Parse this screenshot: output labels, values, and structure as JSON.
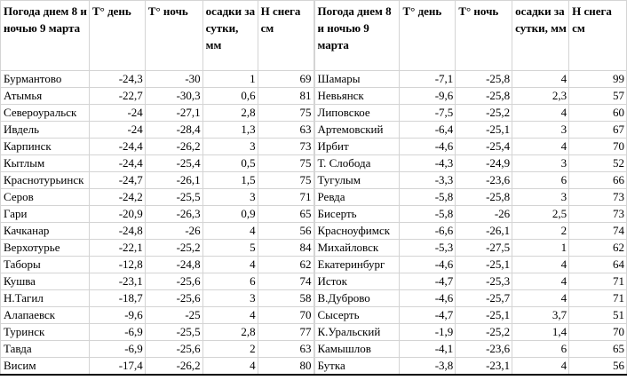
{
  "headers": [
    "Погода днем 8 и ночью 9 марта",
    "T° день",
    "T° ночь",
    "осадки за сутки, мм",
    "Н снега см"
  ],
  "left_rows": [
    [
      "Бурмантово",
      "-24,3",
      "-30",
      "1",
      "69"
    ],
    [
      "Атымья",
      "-22,7",
      "-30,3",
      "0,6",
      "81"
    ],
    [
      "Североуральск",
      "-24",
      "-27,1",
      "2,8",
      "75"
    ],
    [
      "Ивдель",
      "-24",
      "-28,4",
      "1,3",
      "63"
    ],
    [
      "Карпинск",
      "-24,4",
      "-26,2",
      "3",
      "73"
    ],
    [
      "Кытлым",
      "-24,4",
      "-25,4",
      "0,5",
      "75"
    ],
    [
      "Краснотурьинск",
      "-24,7",
      "-26,1",
      "1,5",
      "75"
    ],
    [
      "Серов",
      "-24,2",
      "-25,5",
      "3",
      "71"
    ],
    [
      "Гари",
      "-20,9",
      "-26,3",
      "0,9",
      "65"
    ],
    [
      "Качканар",
      "-24,8",
      "-26",
      "4",
      "56"
    ],
    [
      "Верхотурье",
      "-22,1",
      "-25,2",
      "5",
      "84"
    ],
    [
      "Таборы",
      "-12,8",
      "-24,8",
      "4",
      "62"
    ],
    [
      "Кушва",
      "-23,1",
      "-25,6",
      "6",
      "74"
    ],
    [
      "Н.Тагил",
      "-18,7",
      "-25,6",
      "3",
      "58"
    ],
    [
      "Алапаевск",
      "-9,6",
      "-25",
      "4",
      "70"
    ],
    [
      "Туринск",
      "-6,9",
      "-25,5",
      "2,8",
      "77"
    ],
    [
      "Тавда",
      "-6,9",
      "-25,6",
      "2",
      "63"
    ],
    [
      "Висим",
      "-17,4",
      "-26,2",
      "4",
      "80"
    ]
  ],
  "right_rows": [
    [
      "Шамары",
      "-7,1",
      "-25,8",
      "4",
      "99"
    ],
    [
      "Невьянск",
      "-9,6",
      "-25,8",
      "2,3",
      "57"
    ],
    [
      "Липовское",
      "-7,5",
      "-25,2",
      "4",
      "60"
    ],
    [
      "Артемовский",
      "-6,4",
      "-25,1",
      "3",
      "67"
    ],
    [
      "Ирбит",
      "-4,6",
      "-25,4",
      "4",
      "70"
    ],
    [
      "Т. Слобода",
      "-4,3",
      "-24,9",
      "3",
      "52"
    ],
    [
      "Тугулым",
      "-3,3",
      "-23,6",
      "6",
      "66"
    ],
    [
      "Ревда",
      "-5,8",
      "-25,8",
      "3",
      "73"
    ],
    [
      "Бисерть",
      "-5,8",
      "-26",
      "2,5",
      "73"
    ],
    [
      "Красноуфимск",
      "-6,6",
      "-26,1",
      "2",
      "74"
    ],
    [
      "Михайловск",
      "-5,3",
      "-27,5",
      "1",
      "62"
    ],
    [
      "Екатеринбург",
      "-4,6",
      "-25,1",
      "4",
      "64"
    ],
    [
      "Исток",
      "-4,7",
      "-25,3",
      "4",
      "71"
    ],
    [
      "В.Дуброво",
      "-4,6",
      "-25,7",
      "4",
      "71"
    ],
    [
      "Сысерть",
      "-4,7",
      "-25,1",
      "3,7",
      "51"
    ],
    [
      "К.Уральский",
      "-1,9",
      "-25,2",
      "1,4",
      "70"
    ],
    [
      "Камышлов",
      "-4,1",
      "-23,6",
      "6",
      "65"
    ],
    [
      "Бутка",
      "-3,8",
      "-23,1",
      "4",
      "56"
    ]
  ]
}
